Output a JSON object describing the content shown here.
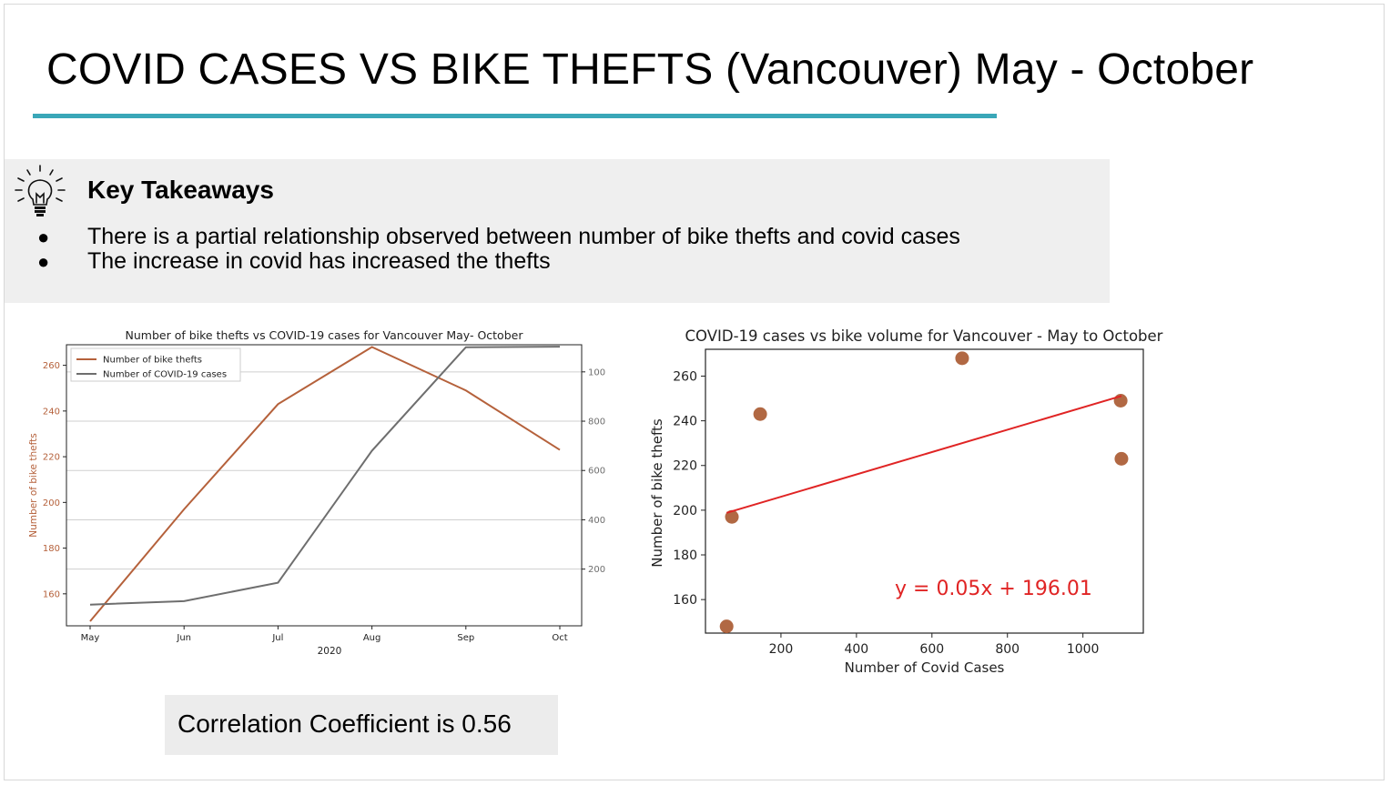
{
  "slide": {
    "title": "COVID CASES VS BIKE THEFTS (Vancouver) May - October",
    "accent_color": "#3aa7b8"
  },
  "takeaways": {
    "icon": "lightbulb-icon",
    "heading": "Key Takeaways",
    "bullets": [
      "There is a partial relationship observed between number of bike thefts and covid cases",
      "The increase in covid has increased the thefts"
    ]
  },
  "correlation": {
    "label": "Correlation Coefficient is 0.56"
  },
  "chart_data": [
    {
      "type": "line",
      "title": "Number of bike thefts vs COVID-19 cases for Vancouver May- October",
      "xlabel": "2020",
      "categories": [
        "May",
        "Jun",
        "Jul",
        "Aug",
        "Sep",
        "Oct"
      ],
      "ylabel_left": "Number of bike thefts",
      "ylabel_right": "Number of COVID-19 cases",
      "ylim_left": [
        146,
        269
      ],
      "ylim_right": [
        -30,
        1110
      ],
      "yticks_left": [
        160,
        180,
        200,
        220,
        240,
        260
      ],
      "yticks_right": [
        200,
        400,
        600,
        800,
        1000
      ],
      "grid": "horizontal (right axis)",
      "legend": "top-left",
      "series": [
        {
          "name": "Number of bike thefts",
          "axis": "left",
          "color": "#b5613b",
          "values": [
            148,
            197,
            243,
            268,
            249,
            223
          ]
        },
        {
          "name": "Number of COVID-19 cases",
          "axis": "right",
          "color": "#6e6e6e",
          "values": [
            56,
            70,
            145,
            680,
            1100,
            1102
          ]
        }
      ]
    },
    {
      "type": "scatter",
      "title": "COVID-19 cases vs bike volume for Vancouver - May to October",
      "xlabel": "Number of Covid Cases",
      "ylabel": "Number of bike thefts",
      "xlim": [
        0,
        1160
      ],
      "ylim": [
        145,
        272
      ],
      "xticks": [
        200,
        400,
        600,
        800,
        1000
      ],
      "yticks": [
        160,
        180,
        200,
        220,
        240,
        260
      ],
      "points": [
        {
          "x": 56,
          "y": 148
        },
        {
          "x": 70,
          "y": 197
        },
        {
          "x": 145,
          "y": 243
        },
        {
          "x": 680,
          "y": 268
        },
        {
          "x": 1100,
          "y": 249
        },
        {
          "x": 1102,
          "y": 223
        }
      ],
      "point_color": "#a9582f",
      "trendline": {
        "slope": 0.05,
        "intercept": 196.01,
        "x_range": [
          56,
          1102
        ],
        "color": "#e02424",
        "label": "y = 0.05x + 196.01"
      }
    }
  ]
}
